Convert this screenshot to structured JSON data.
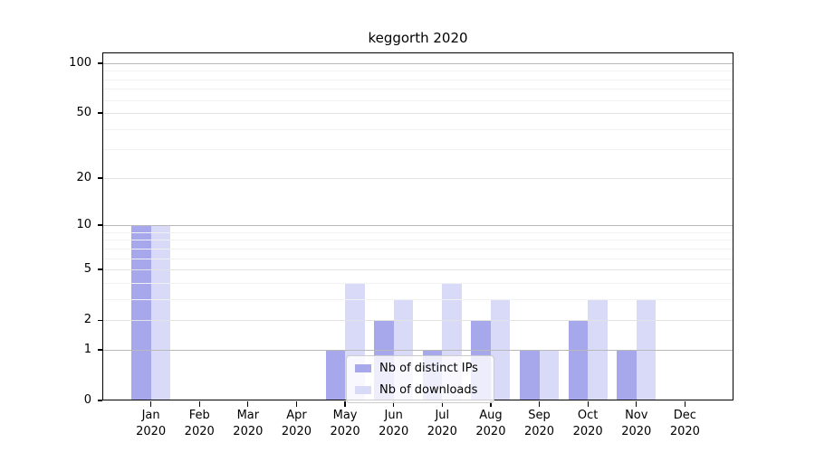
{
  "title": "keggorth 2020",
  "chart_data": {
    "type": "bar",
    "title": "keggorth 2020",
    "categories": [
      "Jan",
      "Feb",
      "Mar",
      "Apr",
      "May",
      "Jun",
      "Jul",
      "Aug",
      "Sep",
      "Oct",
      "Nov",
      "Dec"
    ],
    "year_label": "2020",
    "series": [
      {
        "name": "Nb of distinct IPs",
        "color": "#a7a7ec",
        "values": [
          10,
          0,
          0,
          0,
          1,
          2,
          1,
          2,
          1,
          2,
          1,
          0
        ]
      },
      {
        "name": "Nb of downloads",
        "color": "#d9d9f8",
        "values": [
          10,
          0,
          0,
          0,
          4,
          3,
          4,
          3,
          1,
          3,
          3,
          0
        ]
      }
    ],
    "y_axis": {
      "scale": "log1p",
      "ticks": [
        0,
        1,
        2,
        5,
        10,
        20,
        50,
        100
      ],
      "decade_ticks": [
        1,
        10,
        100
      ],
      "minor_ticks": [
        3,
        4,
        6,
        7,
        8,
        9,
        30,
        40,
        60,
        70,
        80,
        90
      ],
      "max": 116,
      "ylim": [
        0,
        116
      ]
    },
    "xlabel": "",
    "ylabel": "",
    "grid": "horizontal",
    "legend_position": "inside-bottom-center",
    "colors": {
      "grid_major": "#b9b9b9",
      "grid_mid": "#e3e3e3",
      "grid_minor": "#f1f1f1",
      "axis": "#000000",
      "legend_border": "#cccccc"
    }
  }
}
